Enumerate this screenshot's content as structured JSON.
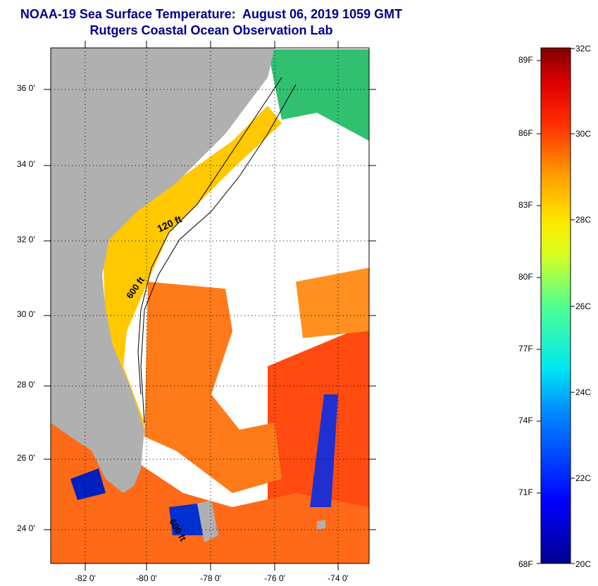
{
  "title": {
    "line1": "NOAA-19 Sea Surface Temperature:  August 06, 2019 1059 GMT",
    "line2": "Rutgers Coastal Ocean Observation Lab"
  },
  "map": {
    "lat_labels": [
      "36 0'",
      "34 0'",
      "32 0'",
      "30 0'",
      "28 0'",
      "26 0'",
      "24 0'"
    ],
    "lon_labels": [
      "-82 0'",
      "-80 0'",
      "-78 0'",
      "-76 0'",
      "-74 0'"
    ],
    "lat_range": [
      23,
      37.1
    ],
    "lon_range": [
      -83,
      -73
    ],
    "isobath_labels": [
      "120 ft",
      "600 ft",
      "600 ft"
    ],
    "colors": {
      "land": "#b0b0b0",
      "cloud": "#ffffff"
    }
  },
  "colorbar": {
    "fahrenheit_labels": [
      "89F",
      "86F",
      "83F",
      "80F",
      "77F",
      "74F",
      "71F",
      "68F"
    ],
    "celsius_labels": [
      "32C",
      "30C",
      "28C",
      "26C",
      "24C",
      "22C",
      "20C"
    ],
    "range_c": [
      20,
      32
    ]
  }
}
